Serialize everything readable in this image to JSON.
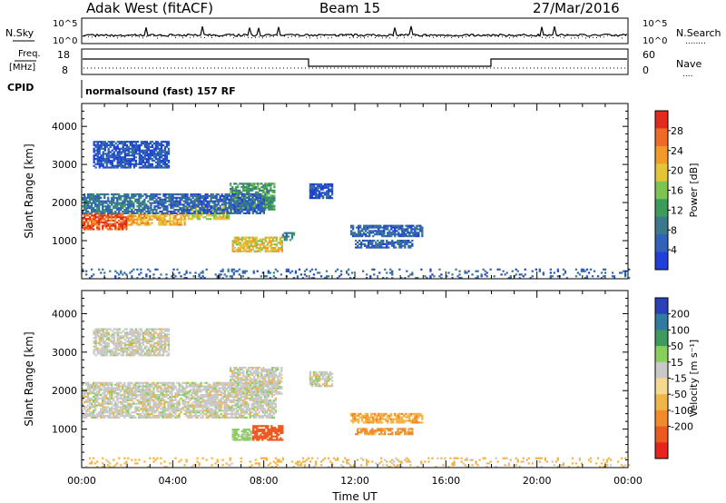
{
  "header": {
    "station": "Adak West (fitACF)",
    "beam": "Beam 15",
    "date": "27/Mar/2016"
  },
  "strip_labels": {
    "nsky": "N.Sky",
    "nsearch": "N.Search",
    "nsearch_dots": "........",
    "freq_top": "Freq.",
    "freq_unit": "[MHz]",
    "nave": "Nave",
    "nave_dots": "....",
    "cpid": "CPID",
    "cpid_value": "normalsound (fast) 157 RF",
    "noise_ticks_left": [
      "10^5",
      "10^0"
    ],
    "noise_ticks_right": [
      "10^5",
      "10^0"
    ],
    "freq_ticks": [
      "18",
      "8"
    ],
    "nave_ticks": [
      "60",
      "0"
    ]
  },
  "colors": {
    "power_scale": [
      "#1f3fd8",
      "#2f62b8",
      "#3a7a8a",
      "#3d9c5a",
      "#7cc450",
      "#e5c43a",
      "#f19a2a",
      "#ee6a25",
      "#e22b1d"
    ],
    "velocity_scale": [
      "#e8251b",
      "#ec5a23",
      "#f08a2b",
      "#f1b448",
      "#f5d98e",
      "#c9c9c9",
      "#88d05a",
      "#3e9a5d",
      "#317aa1",
      "#2a40b8"
    ]
  },
  "chart_data": [
    {
      "type": "heatmap",
      "title": "",
      "xlabel": "",
      "ylabel": "Slant Range [km]",
      "x_ticks": [
        "00:00",
        "04:00",
        "08:00",
        "12:00",
        "16:00",
        "20:00",
        "00:00"
      ],
      "xlim_hours": [
        0,
        24
      ],
      "ylim_km": [
        0,
        4600
      ],
      "y_ticks": [
        "1000",
        "2000",
        "3000",
        "4000"
      ],
      "colorbar": {
        "label": "Power [dB]",
        "range": [
          0,
          32
        ],
        "ticks": [
          "4",
          "8",
          "12",
          "16",
          "20",
          "24",
          "28"
        ]
      },
      "regions": [
        {
          "t0": 0.0,
          "t1": 2.0,
          "r0": 1280,
          "r1": 1700,
          "level": 28
        },
        {
          "t0": 2.0,
          "t1": 4.5,
          "r0": 1400,
          "r1": 1700,
          "level": 22
        },
        {
          "t0": 4.5,
          "t1": 6.5,
          "r0": 1550,
          "r1": 1900,
          "level": 18
        },
        {
          "t0": 6.5,
          "t1": 8.5,
          "r0": 1800,
          "r1": 2500,
          "level": 12
        },
        {
          "t0": 0.0,
          "t1": 3.0,
          "r0": 1700,
          "r1": 2200,
          "level": 8
        },
        {
          "t0": 3.0,
          "t1": 8.0,
          "r0": 1700,
          "r1": 2200,
          "level": 6
        },
        {
          "t0": 6.6,
          "t1": 8.8,
          "r0": 700,
          "r1": 1100,
          "level": 20
        },
        {
          "t0": 8.8,
          "t1": 9.3,
          "r0": 1000,
          "r1": 1200,
          "level": 10
        },
        {
          "t0": 11.8,
          "t1": 15.0,
          "r0": 1100,
          "r1": 1400,
          "level": 6
        },
        {
          "t0": 12.0,
          "t1": 14.5,
          "r0": 800,
          "r1": 1000,
          "level": 6
        },
        {
          "t0": 10.0,
          "t1": 11.0,
          "r0": 2100,
          "r1": 2500,
          "level": 4
        },
        {
          "t0": 0.5,
          "t1": 3.8,
          "r0": 2900,
          "r1": 3600,
          "level": 4
        },
        {
          "t0": 0.0,
          "t1": 24.0,
          "r0": 0,
          "r1": 250,
          "level": 6
        }
      ]
    },
    {
      "type": "heatmap",
      "title": "",
      "xlabel": "Time UT",
      "ylabel": "Slant Range [km]",
      "x_ticks": [
        "00:00",
        "04:00",
        "08:00",
        "12:00",
        "16:00",
        "20:00",
        "00:00"
      ],
      "xlim_hours": [
        0,
        24
      ],
      "ylim_km": [
        0,
        4600
      ],
      "y_ticks": [
        "1000",
        "2000",
        "3000",
        "4000"
      ],
      "colorbar": {
        "label": "Velocity [m s⁻¹]",
        "range": [
          -250,
          250
        ],
        "ticks": [
          "200",
          "100",
          "50",
          "15",
          "-15",
          "-50",
          "-100",
          "-200"
        ]
      },
      "regions": [
        {
          "t0": 0.0,
          "t1": 8.5,
          "r0": 1280,
          "r1": 2200,
          "level": 0
        },
        {
          "t0": 6.5,
          "t1": 8.8,
          "r0": 1900,
          "r1": 2600,
          "level": 0
        },
        {
          "t0": 6.6,
          "t1": 7.5,
          "r0": 700,
          "r1": 1000,
          "level": 30
        },
        {
          "t0": 7.5,
          "t1": 8.8,
          "r0": 700,
          "r1": 1100,
          "level": -120
        },
        {
          "t0": 11.8,
          "t1": 15.0,
          "r0": 1150,
          "r1": 1400,
          "level": -40
        },
        {
          "t0": 12.0,
          "t1": 14.5,
          "r0": 850,
          "r1": 1000,
          "level": -60
        },
        {
          "t0": 10.0,
          "t1": 11.0,
          "r0": 2100,
          "r1": 2500,
          "level": 0
        },
        {
          "t0": 0.5,
          "t1": 3.8,
          "r0": 2900,
          "r1": 3600,
          "level": 0
        },
        {
          "t0": 0.0,
          "t1": 24.0,
          "r0": 0,
          "r1": 250,
          "level": -30
        }
      ]
    }
  ]
}
